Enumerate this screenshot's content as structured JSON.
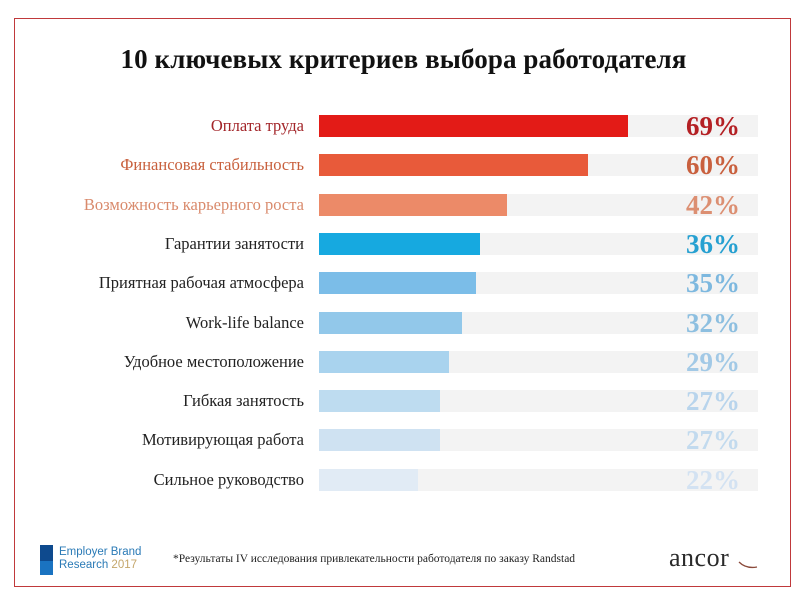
{
  "chart_data": {
    "type": "bar",
    "orientation": "horizontal",
    "title": "10 ключевых критериев выбора работодателя",
    "xlabel": "",
    "ylabel": "",
    "xlim": [
      0,
      100
    ],
    "grid": false,
    "unit": "%",
    "categories": [
      "Оплата труда",
      "Финансовая стабильность",
      "Возможность карьерного роста",
      "Гарантии занятости",
      "Приятная рабочая атмосфера",
      "Work-life balance",
      "Удобное местоположение",
      "Гибкая занятость",
      "Мотивирующая работа",
      "Сильное руководство"
    ],
    "values": [
      69,
      60,
      42,
      36,
      35,
      32,
      29,
      27,
      27,
      22
    ],
    "value_labels": [
      "69%",
      "60%",
      "42%",
      "36%",
      "35%",
      "32%",
      "29%",
      "27%",
      "27%",
      "22%"
    ],
    "bar_colors": [
      "#e31b17",
      "#e85a3a",
      "#ec8a68",
      "#16a9e0",
      "#7bbde8",
      "#92c8ea",
      "#a9d3ee",
      "#bedcf0",
      "#cfe2f2",
      "#e1ebf5"
    ],
    "label_colors": [
      "#a3262a",
      "#c8603d",
      "#d98a6c",
      "#222222",
      "#222222",
      "#222222",
      "#222222",
      "#222222",
      "#222222",
      "#222222"
    ],
    "value_colors": [
      "#b42024",
      "#c9603e",
      "#dc8f72",
      "#26a0d1",
      "#7db8df",
      "#8dbfe0",
      "#a2c9e6",
      "#b8d4ec",
      "#c2daee",
      "#d3e2f2"
    ]
  },
  "footer": {
    "logo_line1": "Employer Brand",
    "logo_line2": "Research",
    "logo_year": "2017",
    "footnote": "*Результаты IV исследования привлекательности работодателя по заказу Randstad",
    "brand": "ancor"
  },
  "colors": {
    "frame_border": "#c0393b",
    "track": "#f3f3f3"
  }
}
